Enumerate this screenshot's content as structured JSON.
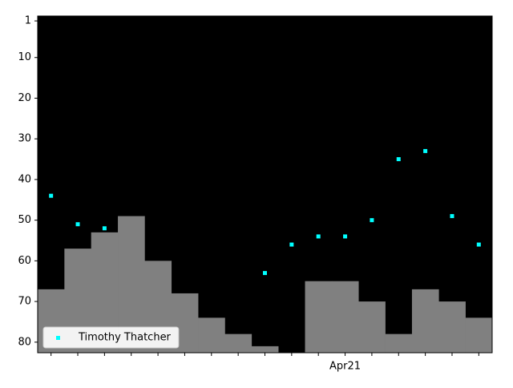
{
  "chart_data": {
    "type": "rank",
    "categories": [
      null,
      null,
      null,
      null,
      null,
      null,
      null,
      null,
      null,
      null,
      null,
      "Apr21",
      null,
      null,
      null,
      null,
      null
    ],
    "series": [
      {
        "type": "step-area",
        "color": "#808080",
        "values": [
          67,
          57,
          53,
          49,
          60,
          68,
          74,
          78,
          81,
          null,
          65,
          65,
          70,
          78,
          67,
          70,
          74
        ]
      },
      {
        "type": "scatter",
        "name": "Timothy Thatcher",
        "color": "#00ffff",
        "values": [
          44,
          51,
          52,
          null,
          null,
          null,
          null,
          null,
          63,
          56,
          54,
          54,
          50,
          35,
          33,
          49,
          56
        ]
      }
    ],
    "ylim": [
      82.6,
      -0.2
    ],
    "yticks": [
      1,
      10,
      20,
      30,
      40,
      50,
      60,
      70,
      80
    ],
    "background": "#000000",
    "legend": "lower left"
  }
}
